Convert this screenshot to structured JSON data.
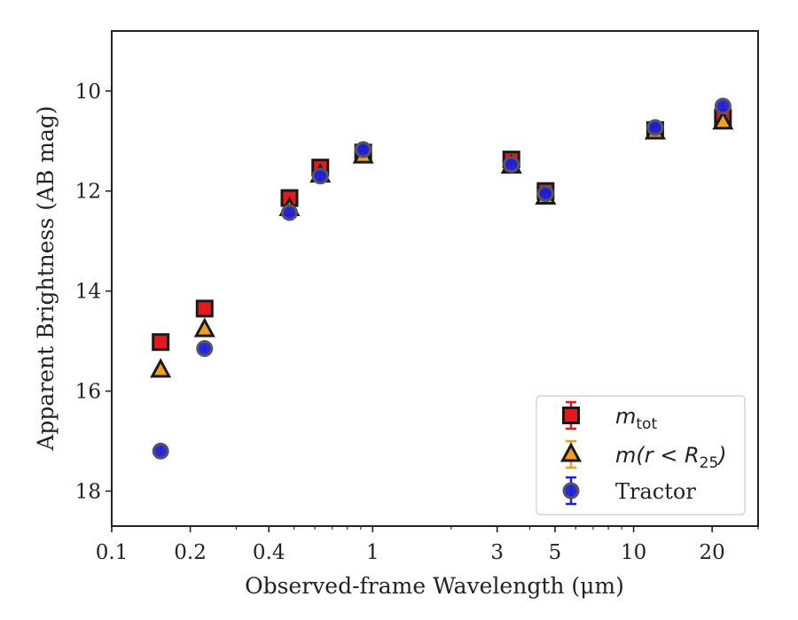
{
  "chart_data": {
    "type": "scatter",
    "xlabel": "Observed-frame Wavelength (μm)",
    "ylabel": "Apparent Brightness (AB mag)",
    "x_scale": "log",
    "xlim": [
      0.1,
      30
    ],
    "ylim": [
      18.7,
      8.8
    ],
    "y_inverted": true,
    "x_ticks": [
      {
        "value": 0.1,
        "label": "0.1"
      },
      {
        "value": 0.2,
        "label": "0.2"
      },
      {
        "value": 0.4,
        "label": "0.4"
      },
      {
        "value": 1,
        "label": "1"
      },
      {
        "value": 3,
        "label": "3"
      },
      {
        "value": 5,
        "label": "5"
      },
      {
        "value": 10,
        "label": "10"
      },
      {
        "value": 20,
        "label": "20"
      }
    ],
    "y_ticks": [
      {
        "value": 10,
        "label": "10"
      },
      {
        "value": 12,
        "label": "12"
      },
      {
        "value": 14,
        "label": "14"
      },
      {
        "value": 16,
        "label": "16"
      },
      {
        "value": 18,
        "label": "18"
      }
    ],
    "legend_position": "lower-right",
    "series": [
      {
        "name": "m_tot",
        "legend_main": "m",
        "legend_sub": "tot",
        "marker": "square",
        "color": "#e41a1c",
        "x": [
          0.154,
          0.227,
          0.48,
          0.63,
          0.92,
          3.4,
          4.6,
          12.1,
          22.0
        ],
        "y": [
          15.02,
          14.35,
          12.14,
          11.53,
          11.23,
          11.37,
          12.0,
          10.78,
          10.53
        ]
      },
      {
        "name": "m(r < R25)",
        "legend_main": "m(r < R",
        "legend_sub": "25",
        "legend_tail": ")",
        "marker": "triangle",
        "color": "#f0a020",
        "x": [
          0.154,
          0.227,
          0.48,
          0.63,
          0.92,
          3.4,
          4.6,
          12.1,
          22.0
        ],
        "y": [
          15.58,
          14.77,
          12.35,
          11.68,
          11.3,
          11.5,
          12.12,
          10.82,
          10.62
        ]
      },
      {
        "name": "Tractor",
        "legend_main": "Tractor",
        "marker": "circle",
        "color": "#1f1fd9",
        "x": [
          0.154,
          0.227,
          0.48,
          0.63,
          0.92,
          3.4,
          4.6,
          12.1,
          22.0
        ],
        "y": [
          17.2,
          15.15,
          12.43,
          11.7,
          11.17,
          11.47,
          12.05,
          10.73,
          10.3
        ]
      }
    ]
  }
}
